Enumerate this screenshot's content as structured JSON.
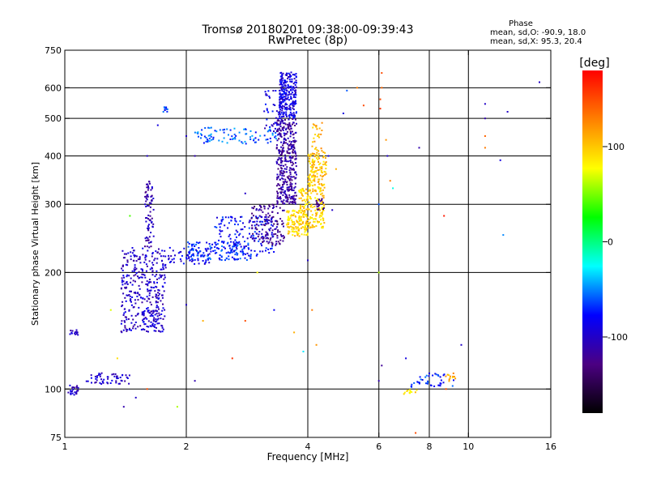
{
  "chart_data": {
    "type": "scatter",
    "title": "Tromsø 20180201 09:38:00-09:39:43",
    "subtitle": "RwPretec (8p)",
    "xlabel": "Frequency [MHz]",
    "ylabel": "Stationary phase Virtual Height [km]",
    "x_scale": "log",
    "y_scale": "log",
    "xlim": [
      1,
      16
    ],
    "ylim": [
      75,
      750
    ],
    "x_ticks": [
      1,
      2,
      4,
      6,
      8,
      10,
      16
    ],
    "x_tick_labels": [
      "1",
      "2",
      "4",
      "6",
      "8",
      "10",
      "16"
    ],
    "y_ticks": [
      75,
      100,
      200,
      300,
      400,
      500,
      600,
      750
    ],
    "y_tick_labels": [
      "75",
      "100",
      "200",
      "300",
      "400",
      "500",
      "600",
      "750"
    ],
    "x_gridlines": [
      2,
      4,
      6,
      8,
      10
    ],
    "y_gridlines": [
      100,
      200,
      300,
      400,
      500,
      600
    ],
    "grid": true,
    "phase_stats": {
      "title": "Phase",
      "line_o": "mean, sd,O: -90.9, 18.0",
      "line_x": "mean, sd,X:  95.3, 20.4"
    },
    "colorbar": {
      "label": "[deg]",
      "min": -180,
      "max": 180,
      "ticks": [
        100,
        0,
        -100
      ],
      "tick_labels": [
        "100",
        "0",
        "-100"
      ],
      "colors": [
        "#000000",
        "#4b0082",
        "#0000ff",
        "#00ffff",
        "#00ff00",
        "#ffff00",
        "#ff8000",
        "#ff0000"
      ]
    },
    "series": [
      {
        "clusters": [
          {
            "f": [
              1.02,
              1.08
            ],
            "h": [
              96,
              103
            ],
            "phase": -100,
            "n": 25
          },
          {
            "f": [
              1.03,
              1.08
            ],
            "h": [
              137,
              142
            ],
            "phase": -100,
            "n": 14
          },
          {
            "f": [
              1.13,
              1.45
            ],
            "h": [
              103,
              110
            ],
            "phase": -100,
            "n": 55
          },
          {
            "f": [
              1.38,
              1.78
            ],
            "h": [
              140,
              232
            ],
            "phase": -100,
            "n": 340
          },
          {
            "f": [
              1.58,
              1.66
            ],
            "h": [
              232,
              345
            ],
            "phase": -110,
            "n": 80
          },
          {
            "f": [
              1.55,
              1.7
            ],
            "h": [
              145,
              160
            ],
            "phase": -90,
            "n": 40
          },
          {
            "f": [
              1.75,
              1.8
            ],
            "h": [
              520,
              535
            ],
            "phase": -70,
            "n": 10
          },
          {
            "f": [
              1.8,
              2.3
            ],
            "h": [
              210,
              232
            ],
            "phase": -90,
            "n": 60
          },
          {
            "f": [
              2.0,
              2.9
            ],
            "h": [
              215,
              240
            ],
            "phase": -70,
            "n": 140
          },
          {
            "f": [
              2.35,
              3.3
            ],
            "h": [
              220,
              280
            ],
            "phase": -80,
            "n": 150
          },
          {
            "f": [
              2.9,
              3.5
            ],
            "h": [
              235,
              300
            ],
            "phase": -120,
            "n": 130
          },
          {
            "f": [
              2.1,
              3.4
            ],
            "h": [
              430,
              475
            ],
            "phase": -60,
            "n": 90
          },
          {
            "f": [
              3.1,
              3.55
            ],
            "h": [
              450,
              590
            ],
            "phase": -90,
            "n": 60
          },
          {
            "f": [
              3.35,
              3.75
            ],
            "h": [
              300,
              500
            ],
            "phase": -115,
            "n": 360
          },
          {
            "f": [
              3.4,
              3.75
            ],
            "h": [
              500,
              660
            ],
            "phase": -90,
            "n": 230
          },
          {
            "f": [
              3.55,
              4.0
            ],
            "h": [
              248,
              290
            ],
            "phase": 95,
            "n": 120
          },
          {
            "f": [
              3.8,
              4.4
            ],
            "h": [
              260,
              330
            ],
            "phase": 95,
            "n": 180
          },
          {
            "f": [
              4.0,
              4.45
            ],
            "h": [
              330,
              410
            ],
            "phase": 100,
            "n": 120
          },
          {
            "f": [
              4.1,
              4.35
            ],
            "h": [
              400,
              490
            ],
            "phase": 110,
            "n": 30
          },
          {
            "f": [
              4.2,
              4.4
            ],
            "h": [
              290,
              310
            ],
            "phase": -130,
            "n": 20
          },
          {
            "f": [
              7.2,
              9.2
            ],
            "h": [
              101,
              110
            ],
            "phase": -70,
            "n": 40
          },
          {
            "f": [
              6.9,
              7.6
            ],
            "h": [
              97,
              100
            ],
            "phase": 90,
            "n": 12
          },
          {
            "f": [
              8.7,
              9.3
            ],
            "h": [
              104,
              110
            ],
            "phase": 110,
            "n": 12
          }
        ],
        "scattered_points": [
          {
            "f": 6.1,
            "h": 655,
            "phase": 150
          },
          {
            "f": 6.1,
            "h": 600,
            "phase": 140
          },
          {
            "f": 6.05,
            "h": 560,
            "phase": 150
          },
          {
            "f": 6.05,
            "h": 530,
            "phase": 160
          },
          {
            "f": 6.0,
            "h": 300,
            "phase": -60
          },
          {
            "f": 6.0,
            "h": 200,
            "phase": 60
          },
          {
            "f": 6.25,
            "h": 440,
            "phase": 120
          },
          {
            "f": 6.3,
            "h": 400,
            "phase": -100
          },
          {
            "f": 6.4,
            "h": 345,
            "phase": 130
          },
          {
            "f": 6.5,
            "h": 330,
            "phase": -20
          },
          {
            "f": 6.0,
            "h": 105,
            "phase": -110
          },
          {
            "f": 6.1,
            "h": 115,
            "phase": -120
          },
          {
            "f": 7.55,
            "h": 420,
            "phase": -110
          },
          {
            "f": 8.7,
            "h": 280,
            "phase": 170
          },
          {
            "f": 7.4,
            "h": 77,
            "phase": 150
          },
          {
            "f": 9.6,
            "h": 130,
            "phase": -100
          },
          {
            "f": 11.0,
            "h": 545,
            "phase": -100
          },
          {
            "f": 11.0,
            "h": 500,
            "phase": -110
          },
          {
            "f": 11.0,
            "h": 450,
            "phase": 140
          },
          {
            "f": 11.0,
            "h": 420,
            "phase": 130
          },
          {
            "f": 12.0,
            "h": 390,
            "phase": -90
          },
          {
            "f": 12.5,
            "h": 520,
            "phase": -100
          },
          {
            "f": 12.2,
            "h": 250,
            "phase": -50
          },
          {
            "f": 15.0,
            "h": 620,
            "phase": -100
          },
          {
            "f": 5.0,
            "h": 590,
            "phase": -60
          },
          {
            "f": 5.3,
            "h": 600,
            "phase": 130
          },
          {
            "f": 5.5,
            "h": 540,
            "phase": 150
          },
          {
            "f": 4.9,
            "h": 515,
            "phase": -90
          },
          {
            "f": 4.6,
            "h": 290,
            "phase": -100
          },
          {
            "f": 4.5,
            "h": 400,
            "phase": -90
          },
          {
            "f": 4.0,
            "h": 215,
            "phase": -100
          },
          {
            "f": 4.1,
            "h": 160,
            "phase": 130
          },
          {
            "f": 4.2,
            "h": 130,
            "phase": 120
          },
          {
            "f": 3.9,
            "h": 125,
            "phase": -30
          },
          {
            "f": 3.7,
            "h": 140,
            "phase": 110
          },
          {
            "f": 2.8,
            "h": 150,
            "phase": 150
          },
          {
            "f": 2.6,
            "h": 120,
            "phase": 160
          },
          {
            "f": 2.1,
            "h": 105,
            "phase": -110
          },
          {
            "f": 2.2,
            "h": 150,
            "phase": 110
          },
          {
            "f": 2.0,
            "h": 165,
            "phase": -100
          },
          {
            "f": 1.9,
            "h": 90,
            "phase": 60
          },
          {
            "f": 1.5,
            "h": 95,
            "phase": -100
          },
          {
            "f": 1.4,
            "h": 90,
            "phase": -110
          },
          {
            "f": 1.35,
            "h": 120,
            "phase": 90
          },
          {
            "f": 1.3,
            "h": 160,
            "phase": 70
          },
          {
            "f": 1.6,
            "h": 100,
            "phase": 150
          },
          {
            "f": 1.7,
            "h": 480,
            "phase": -90
          },
          {
            "f": 1.6,
            "h": 400,
            "phase": -100
          },
          {
            "f": 1.45,
            "h": 280,
            "phase": 40
          },
          {
            "f": 2.1,
            "h": 400,
            "phase": -110
          },
          {
            "f": 2.0,
            "h": 450,
            "phase": -100
          },
          {
            "f": 2.8,
            "h": 320,
            "phase": -100
          },
          {
            "f": 3.0,
            "h": 200,
            "phase": 80
          },
          {
            "f": 3.3,
            "h": 160,
            "phase": -80
          },
          {
            "f": 4.7,
            "h": 370,
            "phase": 110
          },
          {
            "f": 7.0,
            "h": 120,
            "phase": -90
          },
          {
            "f": 8.8,
            "h": 100,
            "phase": 150
          }
        ]
      }
    ]
  }
}
